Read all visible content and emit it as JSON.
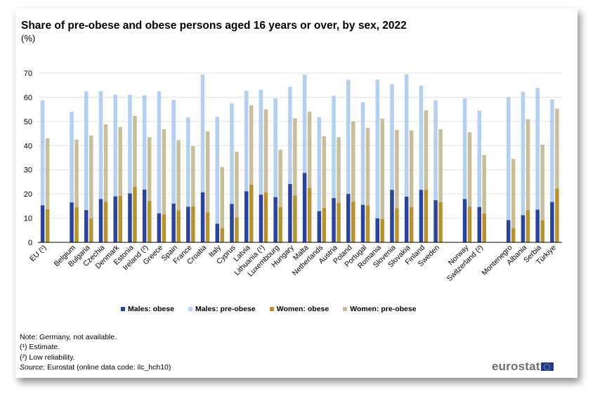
{
  "chart_data": {
    "type": "bar",
    "stacked": true,
    "title": "Share of pre-obese and obese persons aged 16 years or over, by sex, 2022",
    "ylabel": "(%)",
    "ylim": [
      0,
      70
    ],
    "yticks": [
      0,
      10,
      20,
      30,
      40,
      50,
      60,
      70
    ],
    "grid": true,
    "legend_position": "bottom",
    "categories": [
      "EU (¹)",
      "",
      "Belgium",
      "Bulgaria",
      "Czechia",
      "Denmark",
      "Estonia",
      "Ireland (²)",
      "Greece",
      "Spain",
      "France",
      "Croatia",
      "Italy",
      "Cyprus",
      "Latvia",
      "Lithuania (¹)",
      "Luxembourg",
      "Hungary",
      "Malta",
      "Netherlands",
      "Austria",
      "Poland",
      "Portugal",
      "Romania",
      "Slovenia",
      "Slovakia",
      "Finland",
      "Sweden",
      "",
      "Norway",
      "Switzerland (²)",
      "",
      "Montenegro",
      "Albania",
      "Serbia",
      "Türkiye"
    ],
    "series": [
      {
        "name": "Males: obese",
        "stack": "males",
        "color": "#2644A0",
        "values": [
          15.3,
          null,
          16.5,
          13.3,
          17.9,
          19.0,
          20.2,
          21.8,
          12.0,
          16.0,
          14.7,
          20.7,
          7.7,
          15.9,
          21.1,
          19.7,
          18.7,
          24.1,
          28.7,
          12.9,
          18.3,
          20.0,
          15.5,
          9.9,
          21.7,
          18.9,
          21.7,
          17.4,
          null,
          17.9,
          14.6,
          null,
          9.2,
          11.2,
          13.5,
          16.7
        ]
      },
      {
        "name": "Males: pre-obese",
        "stack": "males",
        "color": "#B3CFF1",
        "values": [
          43.4,
          null,
          37.5,
          49.1,
          44.6,
          42.0,
          40.8,
          39.0,
          50.5,
          42.9,
          36.9,
          48.7,
          44.2,
          41.6,
          41.6,
          43.4,
          40.9,
          40.2,
          40.7,
          38.9,
          42.3,
          47.1,
          42.4,
          57.4,
          43.7,
          50.6,
          43.1,
          41.3,
          null,
          41.6,
          39.9,
          null,
          50.8,
          51.1,
          50.3,
          42.4
        ]
      },
      {
        "name": "Women: obese",
        "stack": "women",
        "color": "#B8922A",
        "values": [
          13.7,
          null,
          14.5,
          9.8,
          16.8,
          19.2,
          23.0,
          17.1,
          11.5,
          13.3,
          14.8,
          12.4,
          5.9,
          10.3,
          23.8,
          20.6,
          14.6,
          19.4,
          22.6,
          14.2,
          16.3,
          16.8,
          15.2,
          9.6,
          14.1,
          14.6,
          21.8,
          16.6,
          null,
          14.7,
          11.9,
          null,
          5.9,
          13.3,
          9.2,
          22.2
        ]
      },
      {
        "name": "Women: pre-obese",
        "stack": "women",
        "color": "#C9BE98",
        "values": [
          29.3,
          null,
          28.0,
          34.4,
          32.0,
          28.5,
          29.4,
          26.4,
          35.3,
          29.0,
          25.0,
          33.5,
          25.3,
          27.2,
          32.9,
          34.4,
          23.7,
          31.9,
          31.4,
          29.7,
          27.2,
          33.2,
          32.1,
          41.5,
          32.4,
          31.7,
          32.8,
          30.2,
          null,
          30.8,
          24.2,
          null,
          28.6,
          37.6,
          31.2,
          33.1
        ]
      }
    ]
  },
  "notes": {
    "note": "Note: Germany, not available.",
    "fn1": "(¹) Estimate.",
    "fn2": "(²) Low reliability.",
    "source_label": "Source",
    "source_text": ": Eurostat (online data code: ilc_hch10)"
  },
  "logo": {
    "text": "eurostat",
    "icon": "eu-flag-icon"
  }
}
